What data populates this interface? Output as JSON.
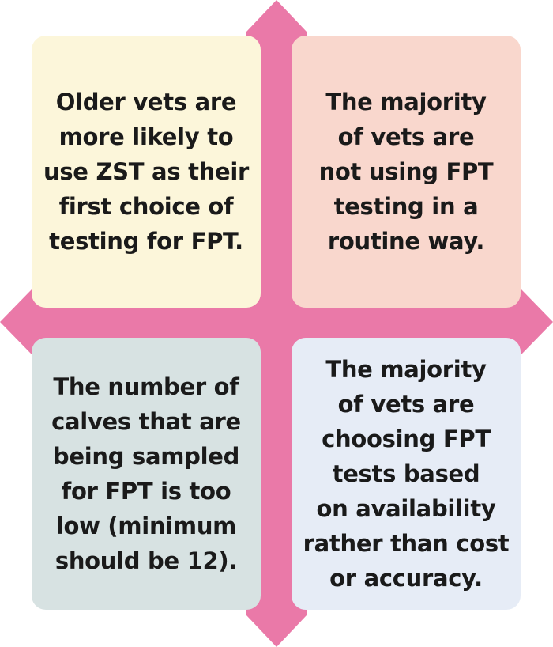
{
  "colors": {
    "cross": "#ea79a8",
    "top_left_card": "#fcf6da",
    "top_right_card": "#f9d7cd",
    "bottom_left_card": "#d7e2e2",
    "bottom_right_card": "#e6ecf6"
  },
  "quadrants": {
    "top_left": {
      "text": "Older vets are\nmore likely to\nuse ZST as their\nfirst choice of\ntesting for FPT."
    },
    "top_right": {
      "text": "The majority\nof vets are\nnot using FPT\ntesting in a\nroutine way."
    },
    "bottom_left": {
      "text": "The number of\ncalves that are\nbeing sampled\nfor FPT is too\nlow (minimum\nshould be 12)."
    },
    "bottom_right": {
      "text": "The majority\nof vets are\nchoosing FPT\ntests based\non availability\nrather than cost\nor accuracy."
    }
  }
}
